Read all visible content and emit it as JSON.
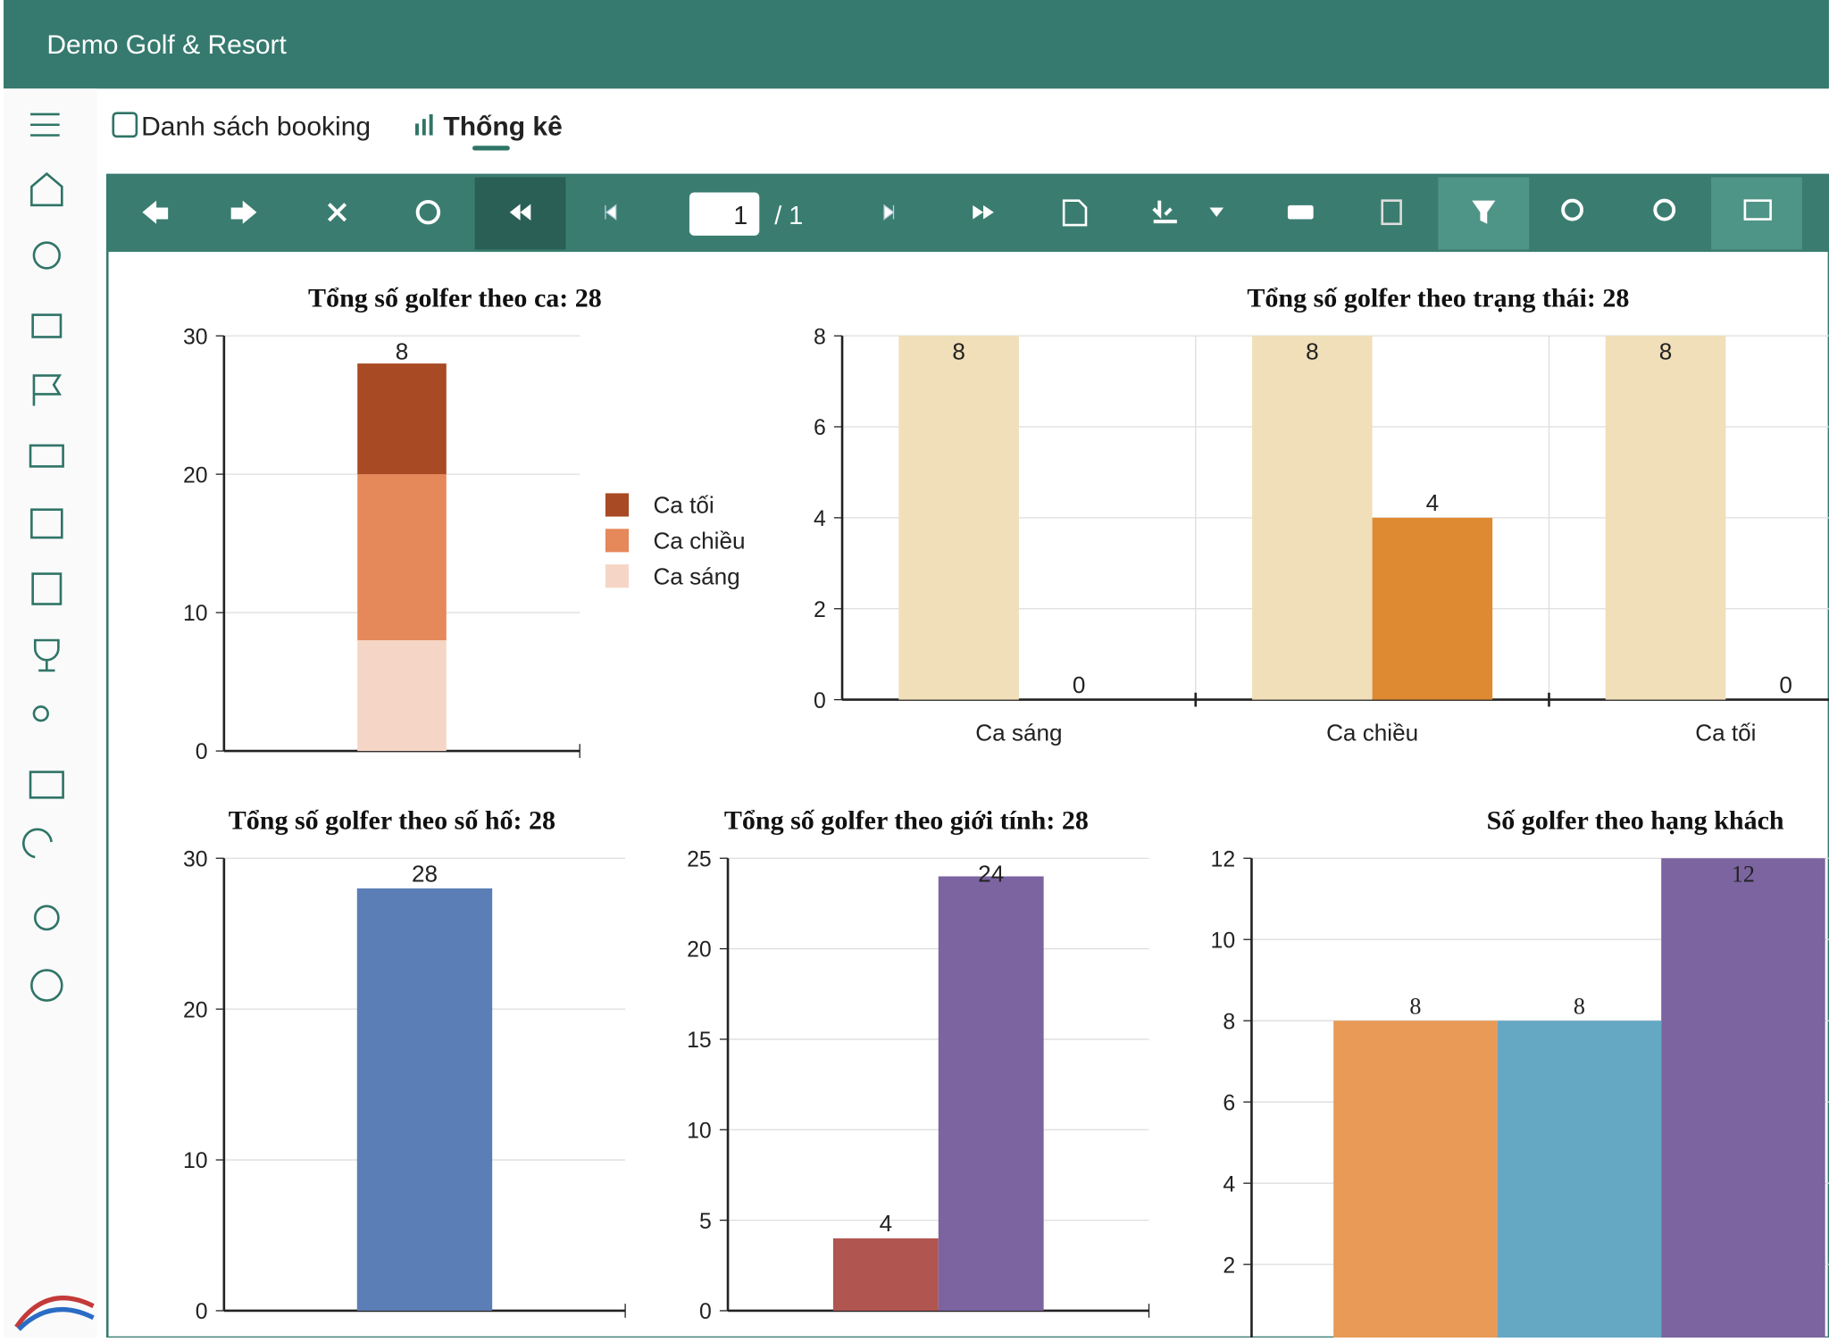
{
  "header": {
    "title": "Demo Golf & Resort"
  },
  "tabs": [
    "Danh sách booking",
    "Thống kê"
  ],
  "toolbar": {
    "page": "1",
    "page_total": "/ 1"
  },
  "chart_data": [
    {
      "type": "bar",
      "stacked": true,
      "title": "Tổng số golfer theo ca: 28",
      "categories": [
        null
      ],
      "series": [
        {
          "name": "Ca sáng",
          "color": "#f5d6c6",
          "values": [
            8
          ]
        },
        {
          "name": "Ca chiều",
          "color": "#e5885a",
          "values": [
            12
          ]
        },
        {
          "name": "Ca tối",
          "color": "#a84a23",
          "values": [
            8
          ]
        }
      ],
      "ylim": [
        0,
        30
      ],
      "yticks": [
        0,
        10,
        20,
        30
      ],
      "grid": true,
      "legend": "right"
    },
    {
      "type": "bar",
      "title": "Tổng số golfer theo trạng thái: 28",
      "categories": [
        "Ca sáng",
        "Ca chiều",
        "Ca tối"
      ],
      "series": [
        {
          "color": "#f0dfb8",
          "values": [
            8,
            8,
            8
          ]
        },
        {
          "color": "#dd8a33",
          "values": [
            0,
            4,
            0
          ]
        }
      ],
      "ylim": [
        0,
        8
      ],
      "yticks": [
        0,
        2,
        4,
        6,
        8
      ],
      "grid": true,
      "xgrid": true
    },
    {
      "type": "bar",
      "title": "Tổng số golfer theo số hố: 28",
      "categories": [
        null
      ],
      "series": [
        {
          "color": "#5c7eb6",
          "values": [
            28
          ]
        }
      ],
      "ylim": [
        0,
        30
      ],
      "yticks": [
        0,
        10,
        20,
        30
      ],
      "grid": true
    },
    {
      "type": "bar",
      "title": "Tổng số golfer theo giới tính: 28",
      "categories": [
        null
      ],
      "series": [
        {
          "color": "#b05550",
          "values": [
            4
          ]
        },
        {
          "color": "#7b64a0",
          "values": [
            24
          ]
        }
      ],
      "ylim": [
        0,
        25
      ],
      "yticks": [
        0,
        5,
        10,
        15,
        20,
        25
      ],
      "grid": true
    },
    {
      "type": "bar",
      "title": "Số golfer theo hạng khách",
      "categories": [
        null
      ],
      "series": [
        {
          "color": "#e89a56",
          "values": [
            8
          ]
        },
        {
          "color": "#64a8c4",
          "values": [
            8
          ]
        },
        {
          "color": "#7b64a0",
          "values": [
            12
          ]
        }
      ],
      "ylim": [
        0,
        12
      ],
      "yticks": [
        2,
        4,
        6,
        8,
        10,
        12
      ],
      "grid": true
    }
  ]
}
